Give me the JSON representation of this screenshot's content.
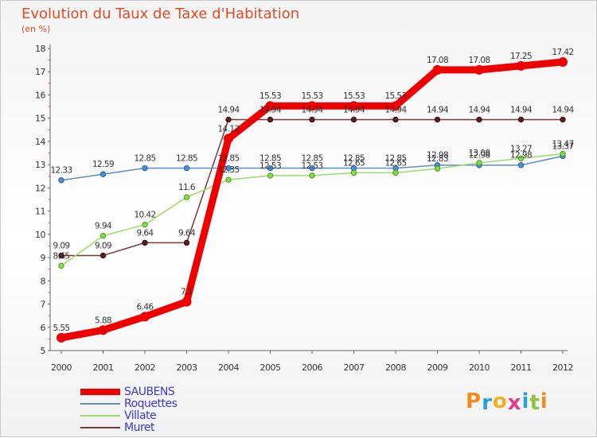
{
  "chart_data": {
    "type": "line",
    "title": "Evolution du Taux de Taxe d'Habitation",
    "subtitle": "(en %)",
    "x": [
      "2000",
      "2001",
      "2002",
      "2003",
      "2004",
      "2005",
      "2006",
      "2007",
      "2008",
      "2009",
      "2010",
      "2011",
      "2012"
    ],
    "ylim": [
      5,
      18
    ],
    "yticks": [
      5,
      6,
      7,
      8,
      9,
      10,
      11,
      12,
      13,
      14,
      15,
      16,
      17,
      18
    ],
    "grid": false,
    "legend_position": "bottom-left",
    "series": [
      {
        "name": "SAUBENS",
        "color": "#ee0000",
        "values": [
          5.55,
          5.88,
          6.46,
          7.1,
          14.12,
          15.53,
          15.53,
          15.53,
          15.53,
          17.08,
          17.08,
          17.25,
          17.42
        ],
        "labels": [
          "5.55",
          "5.88",
          "6.46",
          "7.1",
          "14.12",
          "15.53",
          "15.53",
          "15.53",
          "15.53",
          "17.08",
          "17.08",
          "17.25",
          "17.42"
        ]
      },
      {
        "name": "Roquettes",
        "color": "#5b8fc7",
        "values": [
          12.33,
          12.59,
          12.85,
          12.85,
          12.85,
          12.85,
          12.85,
          12.85,
          12.85,
          12.98,
          12.98,
          12.98,
          13.37
        ],
        "labels": [
          "12.33",
          "12.59",
          "12.85",
          "12.85",
          "12.85",
          "12.85",
          "12.85",
          "12.85",
          "12.85",
          "12.98",
          "12.98",
          "12.98",
          "13.37"
        ]
      },
      {
        "name": "Villate",
        "color": "#99dd66",
        "values": [
          8.65,
          9.94,
          10.42,
          11.6,
          12.35,
          12.53,
          12.53,
          12.65,
          12.65,
          12.83,
          13.08,
          13.27,
          13.47
        ],
        "labels": [
          "8.65",
          "9.94",
          "10.42",
          "11.6",
          "12.35",
          "12.53",
          "12.53",
          "12.65",
          "12.65",
          "12.83",
          "13.08",
          "13.27",
          "13.47"
        ]
      },
      {
        "name": "Muret",
        "color": "#7a3a3a",
        "values": [
          9.09,
          9.09,
          9.64,
          9.64,
          14.94,
          14.94,
          14.94,
          14.94,
          14.94,
          14.94,
          14.94,
          14.94,
          14.94
        ],
        "labels": [
          "9.09",
          "9.09",
          "9.64",
          "9.64",
          "14.94",
          "14.94",
          "14.94",
          "14.94",
          "14.94",
          "14.94",
          "14.94",
          "14.94",
          "14.94"
        ]
      }
    ]
  },
  "logo": {
    "text": "Proxiti",
    "colors": [
      "#f08c1e",
      "#2aa0d8",
      "#f0b020",
      "#e83a8c",
      "#2aa0d8",
      "#8cc63f",
      "#f08c1e"
    ]
  }
}
